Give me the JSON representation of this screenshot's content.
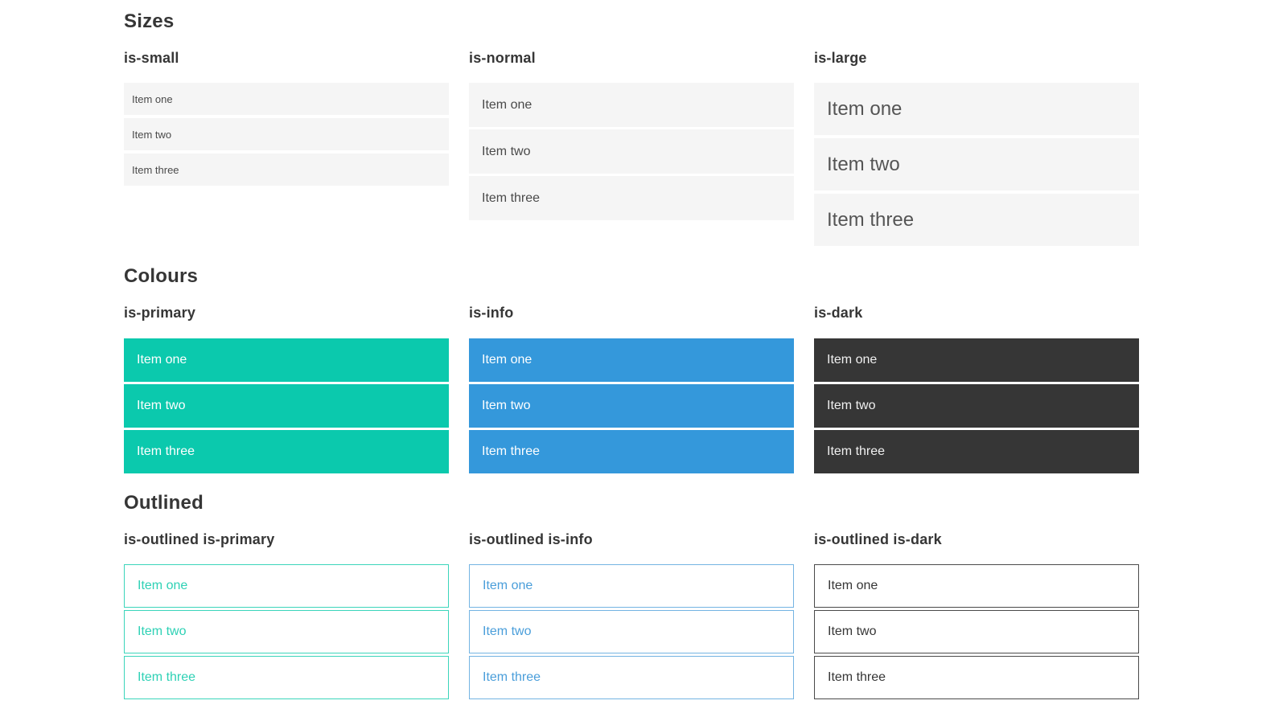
{
  "sections": [
    {
      "title": "Sizes",
      "groups": [
        {
          "label": "is-small",
          "items": [
            "Item one",
            "Item two",
            "Item three"
          ]
        },
        {
          "label": "is-normal",
          "items": [
            "Item one",
            "Item two",
            "Item three"
          ]
        },
        {
          "label": "is-large",
          "items": [
            "Item one",
            "Item two",
            "Item three"
          ]
        }
      ]
    },
    {
      "title": "Colours",
      "groups": [
        {
          "label": "is-primary",
          "items": [
            "Item one",
            "Item two",
            "Item three"
          ]
        },
        {
          "label": "is-info",
          "items": [
            "Item one",
            "Item two",
            "Item three"
          ]
        },
        {
          "label": "is-dark",
          "items": [
            "Item one",
            "Item two",
            "Item three"
          ]
        }
      ]
    },
    {
      "title": "Outlined",
      "groups": [
        {
          "label": "is-outlined is-primary",
          "items": [
            "Item one",
            "Item two",
            "Item three"
          ]
        },
        {
          "label": "is-outlined is-info",
          "items": [
            "Item one",
            "Item two",
            "Item three"
          ]
        },
        {
          "label": "is-outlined is-dark",
          "items": [
            "Item one",
            "Item two",
            "Item three"
          ]
        }
      ]
    }
  ],
  "colors": {
    "heading": "#363636",
    "item-text": "#4a4a4a",
    "light-bg": "#f5f5f5",
    "primary": "#0bc9ad",
    "info": "#3498db",
    "dark": "#363636",
    "on-color-text": "#ffffff",
    "dark-item-text": "#f0f0f0",
    "outline-primary-text": "#2ed1b5",
    "outline-primary-border": "#3bd5bb",
    "outline-info-text": "#4a9eda",
    "outline-info-border": "#74b4e2",
    "outline-dark-text": "#363636",
    "outline-dark-border": "#4a4a4a",
    "page-bg": "#ffffff"
  }
}
